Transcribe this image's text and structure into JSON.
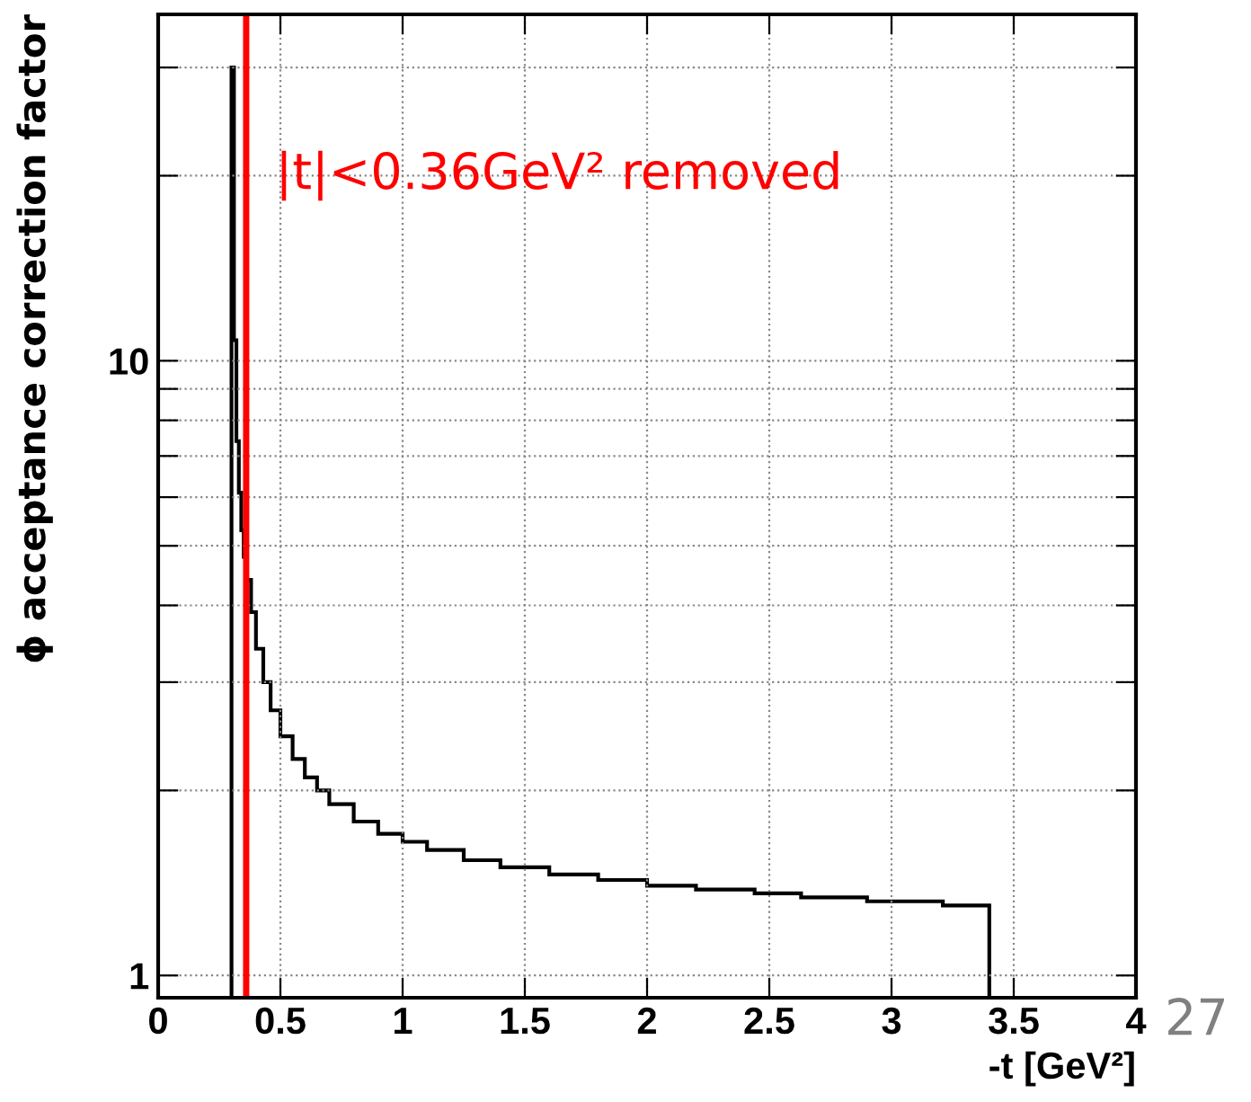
{
  "chart_data": {
    "type": "histogram",
    "xlabel": "-t [GeV²]",
    "ylabel": "ϕ acceptance correction factor",
    "bins": [
      0.3,
      0.31,
      0.32,
      0.33,
      0.34,
      0.35,
      0.36,
      0.38,
      0.4,
      0.43,
      0.46,
      0.5,
      0.55,
      0.6,
      0.65,
      0.7,
      0.8,
      0.9,
      1.0,
      1.1,
      1.25,
      1.4,
      1.6,
      1.8,
      2.0,
      2.2,
      2.44,
      2.63,
      2.9,
      3.21,
      3.4
    ],
    "values": [
      30,
      10.8,
      7.4,
      6.1,
      5.3,
      4.8,
      4.4,
      3.9,
      3.4,
      3.0,
      2.7,
      2.45,
      2.25,
      2.1,
      2.0,
      1.9,
      1.78,
      1.7,
      1.65,
      1.6,
      1.54,
      1.5,
      1.46,
      1.43,
      1.4,
      1.38,
      1.36,
      1.34,
      1.32,
      1.3
    ],
    "color": "#000000",
    "log": "y",
    "grid": true,
    "xlim": [
      0,
      4
    ],
    "xticks": [
      0,
      0.5,
      1,
      1.5,
      2,
      2.5,
      3,
      3.5,
      4
    ],
    "ylim": [
      0.92,
      36.6
    ],
    "yticks": [
      1,
      {
        "value": 2,
        "label": null
      },
      {
        "value": 3,
        "label": null
      },
      {
        "value": 4,
        "label": null
      },
      {
        "value": 5,
        "label": null
      },
      {
        "value": 6,
        "label": null
      },
      {
        "value": 7,
        "label": null
      },
      {
        "value": 8,
        "label": null
      },
      {
        "value": 9,
        "label": null
      },
      10,
      {
        "value": 20,
        "label": null
      },
      {
        "value": 30,
        "label": null
      }
    ],
    "ref_lines": [
      {
        "axis": "x",
        "value": 0.36,
        "label": "|t|<0.36GeV² removed",
        "color": "#ff0000"
      }
    ],
    "annotations": [
      "27"
    ]
  }
}
